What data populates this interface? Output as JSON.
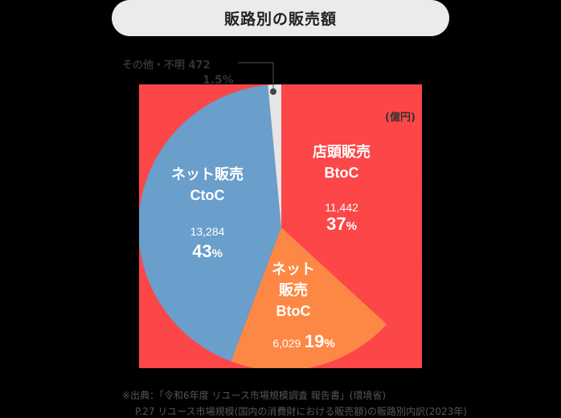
{
  "title": "販路別の販売額",
  "unit_label": "(億円)",
  "chart_data": {
    "type": "pie",
    "title": "販路別の販売額",
    "unit": "億円",
    "slices": [
      {
        "name": "店頭販売 BtoC",
        "value": 11442,
        "percent": 37,
        "color": "#fc4647"
      },
      {
        "name": "ネット販売 BtoC",
        "value": 6029,
        "percent": 19,
        "color": "#fd8845"
      },
      {
        "name": "ネット販売 CtoC",
        "value": 13284,
        "percent": 43,
        "color": "#6a9ecb"
      },
      {
        "name": "その他・不明",
        "value": 472,
        "percent": 1.5,
        "color": "#e6e6e6"
      }
    ],
    "start_angle_deg": 0,
    "direction": "clockwise",
    "background_color": "#fc4647"
  },
  "labels": {
    "store": {
      "line1": "店頭販売",
      "line2": "BtoC",
      "value": "11,442",
      "pct": "37",
      "pct_sign": "%"
    },
    "net_ctoc": {
      "line1": "ネット販売",
      "line2": "CtoC",
      "value": "13,284",
      "pct": "43",
      "pct_sign": "%"
    },
    "net_btoc": {
      "line1": "ネット",
      "line2": "販売",
      "line3": "BtoC",
      "value": "6,029",
      "pct": "19",
      "pct_sign": "%"
    },
    "other": {
      "label": "その他・不明 472",
      "pct": "1.5%"
    }
  },
  "footnote": {
    "line1": "※出典：「令和6年度 リユース市場規模調査 報告書」(環境省)",
    "line2": "P.27 リユース市場規模(国内の消費財における販売額)の販路別内訳(2023年)"
  }
}
